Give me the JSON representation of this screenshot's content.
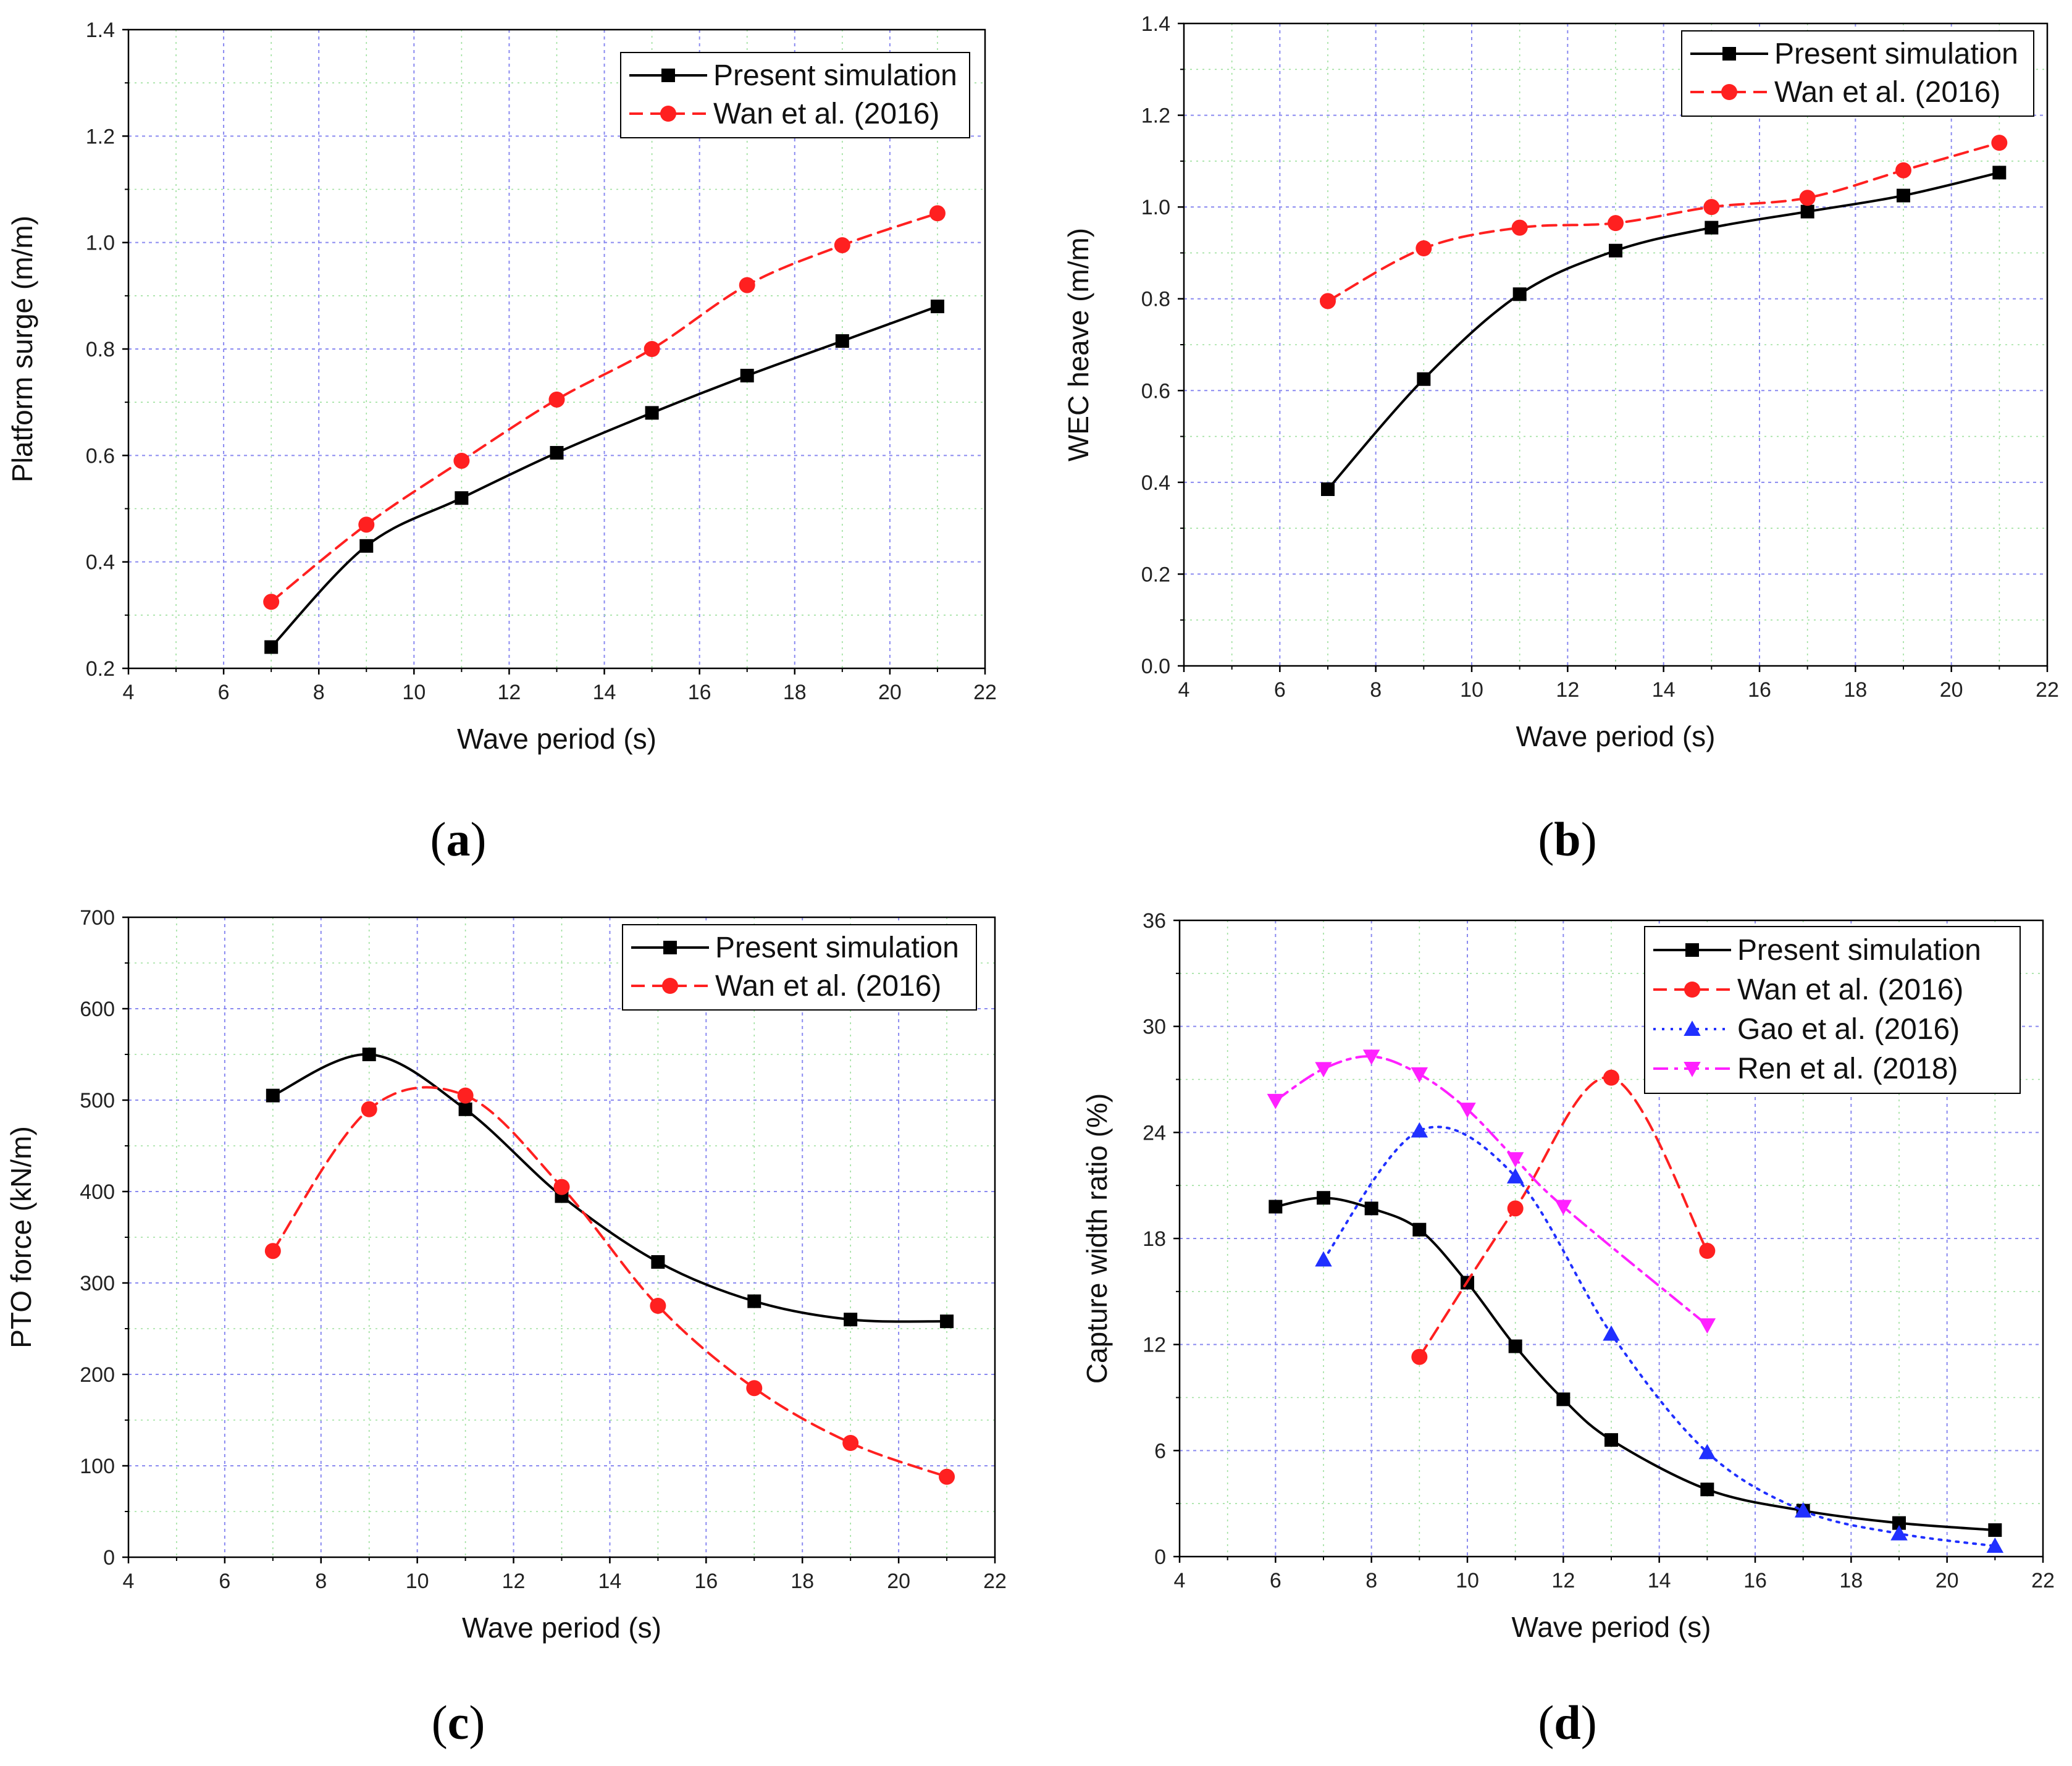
{
  "chart_data": [
    {
      "type": "line",
      "panel": "a",
      "caption_letter": "a",
      "xlabel": "Wave period (s)",
      "ylabel": "Platform surge (m/m)",
      "xlim": [
        4,
        22
      ],
      "ylim": [
        0.2,
        1.4
      ],
      "xticks": [
        4,
        6,
        8,
        10,
        12,
        14,
        16,
        18,
        20,
        22
      ],
      "yticks": [
        0.2,
        0.4,
        0.6,
        0.8,
        1.0,
        1.2,
        1.4
      ],
      "ytick_labels": [
        "0.2",
        "0.4",
        "0.6",
        "0.8",
        "1.0",
        "1.2",
        "1.4"
      ],
      "grid": true,
      "legend_position": "top-right",
      "series": [
        {
          "name": "Present simulation",
          "color": "#000000",
          "marker": "square",
          "dash": "solid",
          "x": [
            7,
            9,
            11,
            13,
            15,
            17,
            19,
            21
          ],
          "values": [
            0.24,
            0.43,
            0.52,
            0.605,
            0.68,
            0.75,
            0.815,
            0.88
          ]
        },
        {
          "name": "Wan et al. (2016)",
          "color": "#ff2020",
          "marker": "circle",
          "dash": "dashed",
          "x": [
            7,
            9,
            11,
            13,
            15,
            17,
            19,
            21
          ],
          "values": [
            0.325,
            0.47,
            0.59,
            0.705,
            0.8,
            0.92,
            0.995,
            1.055
          ]
        }
      ]
    },
    {
      "type": "line",
      "panel": "b",
      "caption_letter": "b",
      "xlabel": "Wave period (s)",
      "ylabel": "WEC heave (m/m)",
      "xlim": [
        4,
        22
      ],
      "ylim": [
        0.0,
        1.4
      ],
      "xticks": [
        4,
        6,
        8,
        10,
        12,
        14,
        16,
        18,
        20,
        22
      ],
      "yticks": [
        0.0,
        0.2,
        0.4,
        0.6,
        0.8,
        1.0,
        1.2,
        1.4
      ],
      "ytick_labels": [
        "0.0",
        "0.2",
        "0.4",
        "0.6",
        "0.8",
        "1.0",
        "1.2",
        "1.4"
      ],
      "grid": true,
      "legend_position": "top-right",
      "series": [
        {
          "name": "Present simulation",
          "color": "#000000",
          "marker": "square",
          "dash": "solid",
          "x": [
            7,
            9,
            11,
            13,
            15,
            17,
            19,
            21
          ],
          "values": [
            0.385,
            0.625,
            0.81,
            0.905,
            0.955,
            0.99,
            1.025,
            1.075
          ]
        },
        {
          "name": "Wan et al. (2016)",
          "color": "#ff2020",
          "marker": "circle",
          "dash": "dashed",
          "x": [
            7,
            9,
            11,
            13,
            15,
            17,
            19,
            21
          ],
          "values": [
            0.795,
            0.91,
            0.955,
            0.965,
            1.0,
            1.02,
            1.08,
            1.14
          ]
        }
      ]
    },
    {
      "type": "line",
      "panel": "c",
      "caption_letter": "c",
      "xlabel": "Wave period (s)",
      "ylabel": "PTO force (kN/m)",
      "xlim": [
        4,
        22
      ],
      "ylim": [
        0,
        700
      ],
      "xticks": [
        4,
        6,
        8,
        10,
        12,
        14,
        16,
        18,
        20,
        22
      ],
      "yticks": [
        0,
        100,
        200,
        300,
        400,
        500,
        600,
        700
      ],
      "ytick_labels": [
        "0",
        "100",
        "200",
        "300",
        "400",
        "500",
        "600",
        "700"
      ],
      "grid": true,
      "legend_position": "top-right",
      "series": [
        {
          "name": "Present simulation",
          "color": "#000000",
          "marker": "square",
          "dash": "solid",
          "x": [
            7,
            9,
            11,
            13,
            15,
            17,
            19,
            21
          ],
          "values": [
            505,
            550,
            490,
            395,
            323,
            280,
            260,
            258
          ]
        },
        {
          "name": "Wan et al. (2016)",
          "color": "#ff2020",
          "marker": "circle",
          "dash": "dashed",
          "x": [
            7,
            9,
            11,
            13,
            15,
            17,
            19,
            21
          ],
          "values": [
            335,
            490,
            505,
            405,
            275,
            185,
            125,
            88
          ]
        }
      ]
    },
    {
      "type": "line",
      "panel": "d",
      "caption_letter": "d",
      "xlabel": "Wave period (s)",
      "ylabel": "Capture width ratio (%)",
      "xlim": [
        4,
        22
      ],
      "ylim": [
        0,
        36
      ],
      "xticks": [
        4,
        6,
        8,
        10,
        12,
        14,
        16,
        18,
        20,
        22
      ],
      "yticks": [
        0,
        6,
        12,
        18,
        24,
        30,
        36
      ],
      "ytick_labels": [
        "0",
        "6",
        "12",
        "18",
        "24",
        "30",
        "36"
      ],
      "grid": true,
      "legend_position": "top-right",
      "series": [
        {
          "name": "Present simulation",
          "color": "#000000",
          "marker": "square",
          "dash": "solid",
          "x": [
            6,
            7,
            8,
            9,
            10,
            11,
            12,
            13,
            15,
            17,
            19,
            21
          ],
          "values": [
            19.8,
            20.3,
            19.7,
            18.5,
            15.5,
            11.9,
            8.9,
            6.6,
            3.8,
            2.6,
            1.9,
            1.5
          ]
        },
        {
          "name": "Wan et al. (2016)",
          "color": "#ff2020",
          "marker": "circle",
          "dash": "dashed",
          "x": [
            9,
            11,
            13,
            15
          ],
          "values": [
            11.3,
            19.7,
            27.1,
            17.3
          ]
        },
        {
          "name": "Gao et al. (2016)",
          "color": "#2030ff",
          "marker": "triangle-up",
          "dash": "dotted",
          "x": [
            7,
            9,
            11,
            13,
            15,
            17,
            19,
            21
          ],
          "values": [
            16.8,
            24.1,
            21.5,
            12.6,
            5.9,
            2.6,
            1.3,
            0.6
          ]
        },
        {
          "name": "Ren et al. (2018)",
          "color": "#ff20ff",
          "marker": "triangle-down",
          "dash": "dashdot",
          "x": [
            6,
            7,
            8,
            9,
            10,
            11,
            12,
            15
          ],
          "values": [
            25.8,
            27.6,
            28.3,
            27.3,
            25.3,
            22.5,
            19.8,
            13.1
          ]
        }
      ]
    }
  ]
}
